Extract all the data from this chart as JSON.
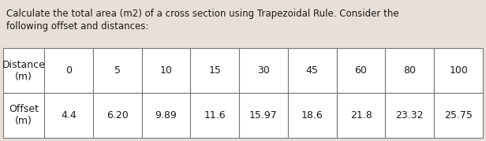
{
  "title_line1": "Calculate the total area (m2) of a cross section using Trapezoidal Rule. Consider the",
  "title_line2": "following offset and distances:",
  "distance_values": [
    "0",
    "5",
    "10",
    "15",
    "30",
    "45",
    "60",
    "80",
    "100"
  ],
  "offset_values": [
    "4.4",
    "6.20",
    "9.89",
    "11.6",
    "15.97",
    "18.6",
    "21.8",
    "23.32",
    "25.75"
  ],
  "bg_color": "#e8e0d8",
  "text_color": "#1a1a1a",
  "table_bg": "#ffffff",
  "border_color": "#777777",
  "title_fontsize": 8.5,
  "cell_fontsize": 9.0,
  "label_fontsize": 9.0
}
